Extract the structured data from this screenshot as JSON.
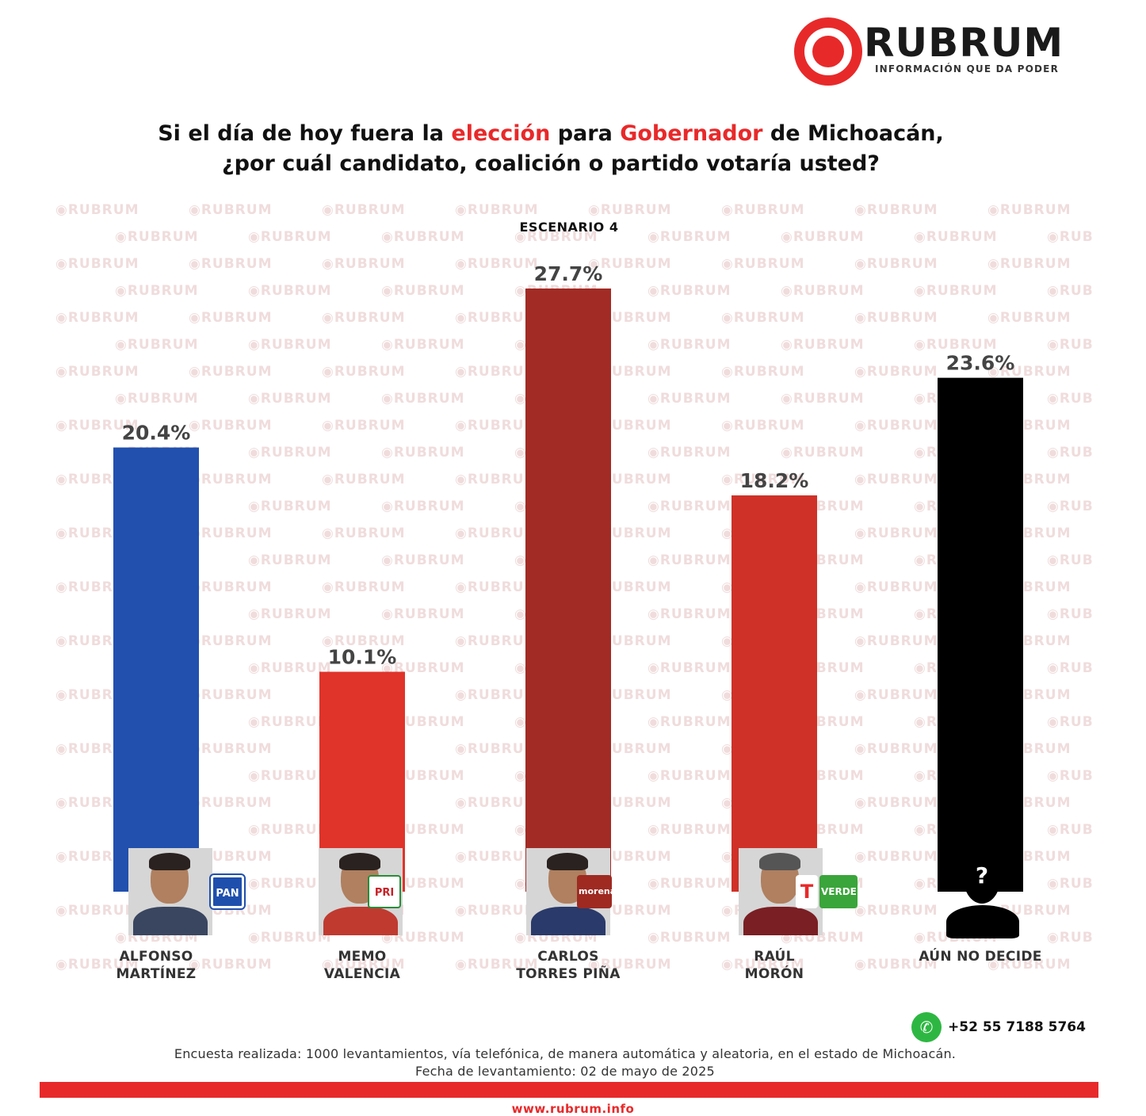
{
  "logo": {
    "word": "RUBRUM",
    "tagline": "INFORMACIÓN QUE DA PODER"
  },
  "title": {
    "line1_a": "Si el día de hoy fuera la ",
    "line1_b": "elección",
    "line1_c": " para ",
    "line1_d": "Gobernador",
    "line1_e": " de Michoacán,",
    "line2": "¿por cuál candidato, coalición o partido votaría usted?"
  },
  "watermark_text": "RUBRUM",
  "chart_data": {
    "type": "bar",
    "subtitle": "ESCENARIO 4",
    "categories": [
      "ALFONSO MARTÍNEZ",
      "MEMO VALENCIA",
      "CARLOS TORRES PIÑA",
      "RAÚL MORÓN",
      "AÚN NO DECIDE"
    ],
    "values": [
      20.4,
      10.1,
      27.7,
      18.2,
      23.6
    ],
    "value_labels": [
      "20.4%",
      "10.1%",
      "27.7%",
      "18.2%",
      "23.6%"
    ],
    "colors": [
      "#2150ae",
      "#e0332a",
      "#a22b25",
      "#cf3128",
      "#000000"
    ],
    "ylim": [
      0,
      27.7
    ],
    "grid": false,
    "legend": "none"
  },
  "candidates": [
    {
      "name_1": "ALFONSO",
      "name_2": "MARTÍNEZ",
      "party": "PAN"
    },
    {
      "name_1": "MEMO",
      "name_2": "VALENCIA",
      "party": "PRI"
    },
    {
      "name_1": "CARLOS",
      "name_2": "TORRES PIÑA",
      "party": "morena"
    },
    {
      "name_1": "RAÚL",
      "name_2": "MORÓN",
      "party": "T",
      "party2": "VERDE"
    },
    {
      "name_1": "AÚN NO DECIDE",
      "name_2": "",
      "party": "?"
    }
  ],
  "footer": {
    "phone": "+52 55 7188 5764",
    "note1": "Encuesta realizada: 1000 levantamientos, vía telefónica, de manera automática y aleatoria, en el estado de Michoacán.",
    "note2": "Fecha de levantamiento: 02 de mayo de 2025",
    "site": "www.rubrum.info"
  }
}
